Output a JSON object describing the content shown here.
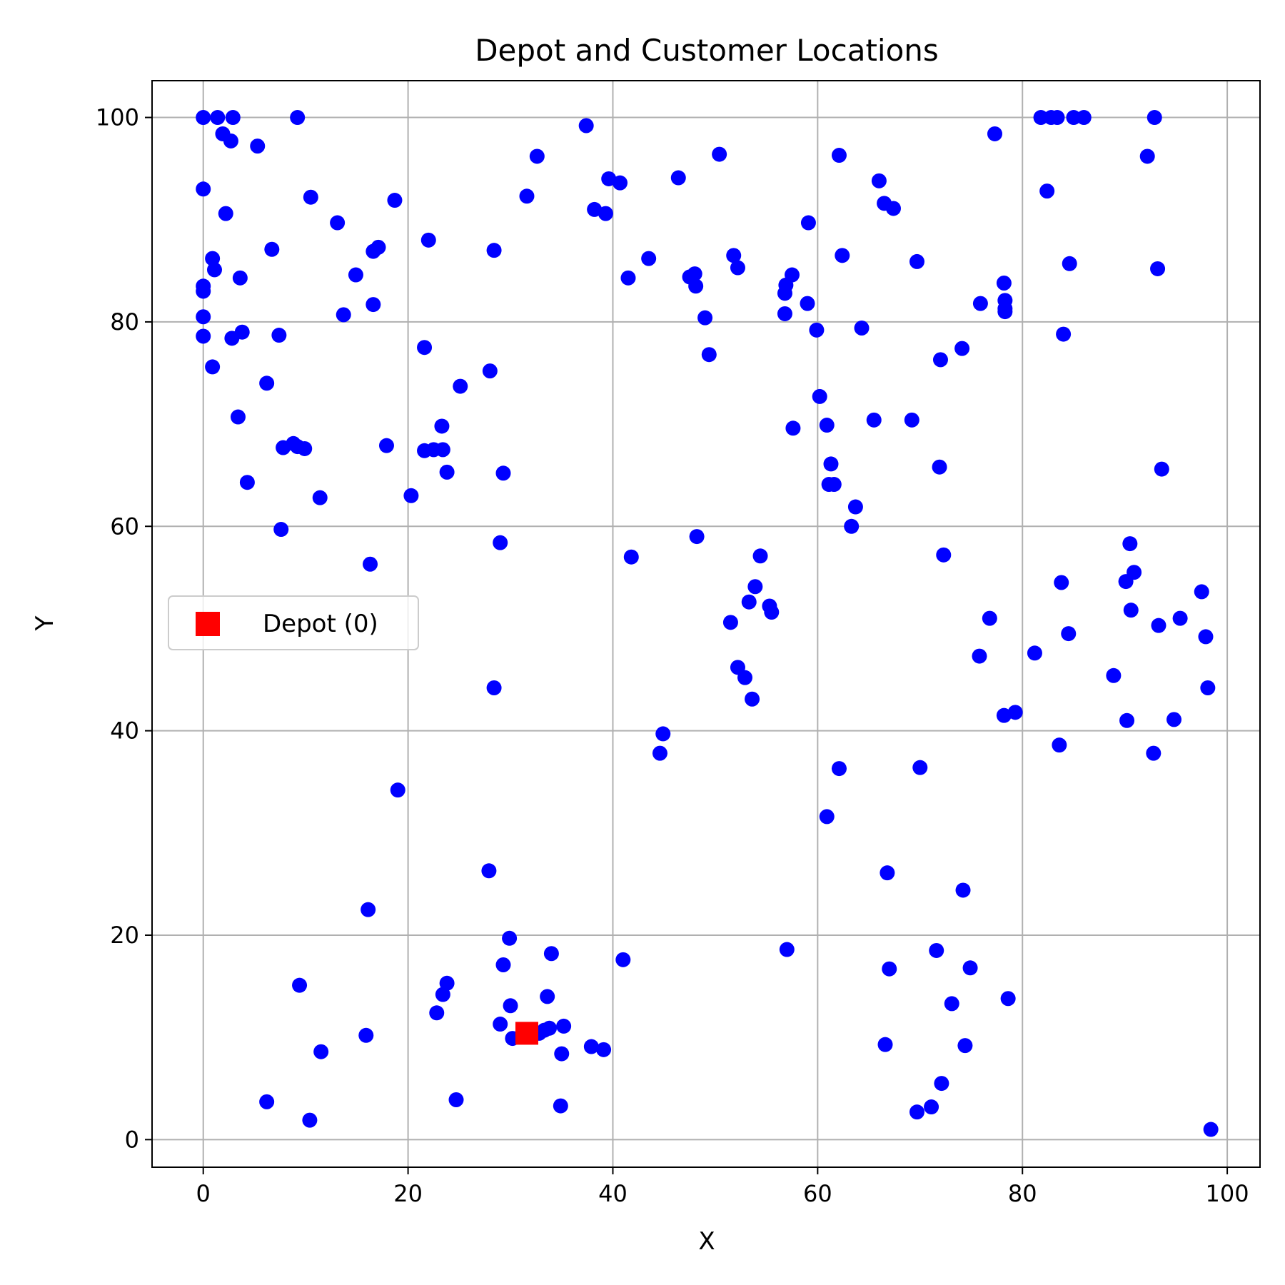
{
  "chart_data": {
    "type": "scatter",
    "title": "Depot and Customer Locations",
    "xlabel": "X",
    "ylabel": "Y",
    "xlim": [
      -5,
      103.2
    ],
    "ylim": [
      -2.7,
      103.6
    ],
    "xticks": [
      0,
      20,
      40,
      60,
      80,
      100
    ],
    "yticks": [
      0,
      20,
      40,
      60,
      80,
      100
    ],
    "grid": true,
    "legend": {
      "placement": "center-left",
      "entries": [
        "Depot (0)"
      ]
    },
    "series": [
      {
        "name": "Depot (0)",
        "marker": "square",
        "color": "#ff0000",
        "points": [
          [
            31.6,
            10.4
          ]
        ]
      },
      {
        "name": "",
        "marker": "circle",
        "color": "#0000ff",
        "points": [
          [
            0,
            100
          ],
          [
            1.4,
            100
          ],
          [
            2.9,
            100
          ],
          [
            9.2,
            100
          ],
          [
            1.9,
            98.4
          ],
          [
            2.7,
            97.7
          ],
          [
            5.3,
            97.2
          ],
          [
            0,
            93
          ],
          [
            2.2,
            90.6
          ],
          [
            0.9,
            86.2
          ],
          [
            1.1,
            85.1
          ],
          [
            0,
            83.5
          ],
          [
            0,
            83.0
          ],
          [
            0,
            80.5
          ],
          [
            0,
            78.6
          ],
          [
            0.9,
            75.6
          ],
          [
            3.6,
            84.3
          ],
          [
            3.8,
            79.0
          ],
          [
            2.8,
            78.4
          ],
          [
            3.4,
            70.7
          ],
          [
            4.3,
            64.3
          ],
          [
            6.7,
            87.1
          ],
          [
            7.4,
            78.7
          ],
          [
            6.2,
            74.0
          ],
          [
            7.6,
            59.7
          ],
          [
            7.8,
            67.7
          ],
          [
            8.8,
            68.1
          ],
          [
            9.2,
            67.8
          ],
          [
            9.9,
            67.6
          ],
          [
            10.5,
            92.2
          ],
          [
            13.1,
            89.7
          ],
          [
            11.4,
            62.8
          ],
          [
            13.7,
            80.7
          ],
          [
            14.9,
            84.6
          ],
          [
            16.6,
            86.9
          ],
          [
            17.1,
            87.3
          ],
          [
            16.6,
            81.7
          ],
          [
            18.7,
            91.9
          ],
          [
            17.9,
            67.9
          ],
          [
            16.3,
            56.3
          ],
          [
            22.0,
            88.0
          ],
          [
            21.6,
            77.5
          ],
          [
            21.6,
            67.4
          ],
          [
            22.5,
            67.5
          ],
          [
            23.4,
            67.5
          ],
          [
            23.3,
            69.8
          ],
          [
            23.8,
            65.3
          ],
          [
            20.3,
            63.0
          ],
          [
            25.1,
            73.7
          ],
          [
            28.0,
            75.2
          ],
          [
            28.4,
            87.0
          ],
          [
            29.3,
            65.2
          ],
          [
            29.0,
            58.4
          ],
          [
            28.4,
            44.2
          ],
          [
            19.0,
            34.2
          ],
          [
            16.1,
            22.5
          ],
          [
            9.4,
            15.1
          ],
          [
            15.9,
            10.2
          ],
          [
            11.5,
            8.6
          ],
          [
            6.2,
            3.7
          ],
          [
            10.4,
            1.9
          ],
          [
            27.9,
            26.3
          ],
          [
            29.9,
            19.7
          ],
          [
            29.3,
            17.1
          ],
          [
            30.0,
            13.1
          ],
          [
            22.8,
            12.4
          ],
          [
            23.8,
            15.3
          ],
          [
            23.4,
            14.2
          ],
          [
            24.7,
            3.9
          ],
          [
            29.0,
            11.3
          ],
          [
            30.2,
            9.9
          ],
          [
            31.6,
            10.1
          ],
          [
            32.8,
            10.4
          ],
          [
            33.3,
            10.7
          ],
          [
            33.8,
            10.9
          ],
          [
            35.2,
            11.1
          ],
          [
            33.6,
            14.0
          ],
          [
            34.0,
            18.2
          ],
          [
            35.0,
            8.4
          ],
          [
            34.9,
            3.3
          ],
          [
            37.9,
            9.1
          ],
          [
            39.1,
            8.8
          ],
          [
            31.6,
            92.3
          ],
          [
            32.6,
            96.2
          ],
          [
            37.4,
            99.2
          ],
          [
            38.2,
            91.0
          ],
          [
            39.3,
            90.6
          ],
          [
            39.6,
            94.0
          ],
          [
            40.7,
            93.6
          ],
          [
            41.5,
            84.3
          ],
          [
            43.5,
            86.2
          ],
          [
            41.8,
            57.0
          ],
          [
            41.0,
            17.6
          ],
          [
            44.6,
            37.8
          ],
          [
            44.9,
            39.7
          ],
          [
            46.4,
            94.1
          ],
          [
            47.5,
            84.4
          ],
          [
            48.0,
            84.7
          ],
          [
            48.1,
            83.5
          ],
          [
            49.0,
            80.4
          ],
          [
            49.4,
            76.8
          ],
          [
            48.2,
            59.0
          ],
          [
            50.4,
            96.4
          ],
          [
            51.8,
            86.5
          ],
          [
            52.2,
            85.3
          ],
          [
            51.5,
            50.6
          ],
          [
            52.2,
            46.2
          ],
          [
            52.9,
            45.2
          ],
          [
            53.6,
            43.1
          ],
          [
            53.3,
            52.6
          ],
          [
            53.9,
            54.1
          ],
          [
            54.4,
            57.1
          ],
          [
            55.3,
            52.2
          ],
          [
            55.5,
            51.6
          ],
          [
            56.8,
            82.8
          ],
          [
            56.9,
            83.6
          ],
          [
            57.5,
            84.6
          ],
          [
            56.8,
            80.8
          ],
          [
            59.1,
            89.7
          ],
          [
            59.0,
            81.8
          ],
          [
            59.9,
            79.2
          ],
          [
            60.2,
            72.7
          ],
          [
            57.6,
            69.6
          ],
          [
            60.9,
            69.9
          ],
          [
            61.3,
            66.1
          ],
          [
            61.1,
            64.1
          ],
          [
            61.6,
            64.1
          ],
          [
            62.1,
            96.3
          ],
          [
            62.4,
            86.5
          ],
          [
            64.3,
            79.4
          ],
          [
            63.7,
            61.9
          ],
          [
            63.3,
            60.0
          ],
          [
            57.0,
            18.6
          ],
          [
            62.1,
            36.3
          ],
          [
            60.9,
            31.6
          ],
          [
            65.5,
            70.4
          ],
          [
            66.0,
            93.8
          ],
          [
            66.5,
            91.6
          ],
          [
            67.4,
            91.1
          ],
          [
            69.7,
            85.9
          ],
          [
            69.2,
            70.4
          ],
          [
            70.0,
            36.4
          ],
          [
            66.8,
            26.1
          ],
          [
            67.0,
            16.7
          ],
          [
            66.6,
            9.3
          ],
          [
            69.7,
            2.7
          ],
          [
            71.1,
            3.2
          ],
          [
            72.0,
            76.3
          ],
          [
            71.9,
            65.8
          ],
          [
            72.3,
            57.2
          ],
          [
            71.6,
            18.5
          ],
          [
            72.1,
            5.5
          ],
          [
            73.1,
            13.3
          ],
          [
            74.1,
            77.4
          ],
          [
            74.2,
            24.4
          ],
          [
            74.4,
            9.2
          ],
          [
            74.9,
            16.8
          ],
          [
            75.9,
            81.8
          ],
          [
            75.8,
            47.3
          ],
          [
            76.8,
            51.0
          ],
          [
            77.3,
            98.4
          ],
          [
            78.2,
            83.8
          ],
          [
            78.3,
            82.1
          ],
          [
            78.3,
            81.3
          ],
          [
            78.3,
            81.0
          ],
          [
            78.2,
            41.5
          ],
          [
            79.3,
            41.8
          ],
          [
            78.6,
            13.8
          ],
          [
            81.2,
            47.6
          ],
          [
            81.8,
            100
          ],
          [
            82.8,
            100
          ],
          [
            83.4,
            100
          ],
          [
            85.0,
            100
          ],
          [
            86.0,
            100
          ],
          [
            82.4,
            92.8
          ],
          [
            84.6,
            85.7
          ],
          [
            84.0,
            78.8
          ],
          [
            83.8,
            54.5
          ],
          [
            84.5,
            49.5
          ],
          [
            83.6,
            38.6
          ],
          [
            92.2,
            96.2
          ],
          [
            92.9,
            100
          ],
          [
            93.2,
            85.2
          ],
          [
            93.6,
            65.6
          ],
          [
            90.5,
            58.3
          ],
          [
            90.9,
            55.5
          ],
          [
            90.1,
            54.6
          ],
          [
            90.6,
            51.8
          ],
          [
            93.3,
            50.3
          ],
          [
            95.4,
            51.0
          ],
          [
            97.5,
            53.6
          ],
          [
            97.9,
            49.2
          ],
          [
            88.9,
            45.4
          ],
          [
            90.2,
            41.0
          ],
          [
            94.8,
            41.1
          ],
          [
            92.8,
            37.8
          ],
          [
            98.1,
            44.2
          ],
          [
            98.4,
            1.0
          ]
        ]
      }
    ]
  }
}
